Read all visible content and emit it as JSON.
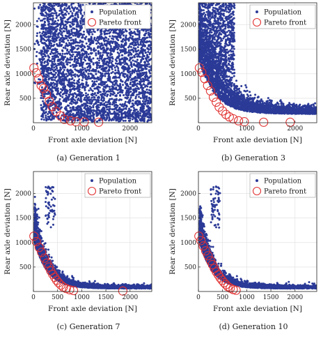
{
  "chart_data": [
    {
      "type": "scatter",
      "caption": "(a) Generation 1",
      "xlabel": "Front axle deviation [N]",
      "ylabel": "Rear axle deviation [N]",
      "xlim": [
        0,
        2450
      ],
      "ylim": [
        0,
        2450
      ],
      "xticks": [
        0,
        1000,
        2000
      ],
      "yticks": [
        500,
        1000,
        1500,
        2000
      ],
      "xtick_labels": [
        "0",
        "1000",
        "2000"
      ],
      "ytick_labels": [
        "500",
        "1000",
        "1500",
        "2000"
      ],
      "legend": {
        "position": "top-right",
        "entries": [
          "Population",
          "Pareto front"
        ]
      },
      "grid": true,
      "population_shape": "uniform",
      "series": [
        {
          "name": "Pareto front",
          "points": [
            [
              10,
              1120
            ],
            [
              60,
              1020
            ],
            [
              110,
              900
            ],
            [
              160,
              760
            ],
            [
              210,
              700
            ],
            [
              270,
              580
            ],
            [
              330,
              440
            ],
            [
              390,
              330
            ],
            [
              470,
              230
            ],
            [
              560,
              140
            ],
            [
              640,
              70
            ],
            [
              770,
              40
            ],
            [
              880,
              20
            ],
            [
              1050,
              15
            ],
            [
              1350,
              10
            ]
          ]
        }
      ]
    },
    {
      "type": "scatter",
      "caption": "(b) Generation 3",
      "xlabel": "Front axle deviation [N]",
      "ylabel": "Rear axle deviation [N]",
      "xlim": [
        0,
        2450
      ],
      "ylim": [
        0,
        2450
      ],
      "xticks": [
        0,
        1000,
        2000
      ],
      "yticks": [
        500,
        1000,
        1500,
        2000
      ],
      "xtick_labels": [
        "0",
        "1000",
        "2000"
      ],
      "ytick_labels": [
        "500",
        "1000",
        "1500",
        "2000"
      ],
      "legend": {
        "position": "top-right",
        "entries": [
          "Population",
          "Pareto front"
        ]
      },
      "grid": true,
      "population_shape": "curve",
      "series": [
        {
          "name": "Pareto front",
          "points": [
            [
              20,
              1120
            ],
            [
              70,
              1030
            ],
            [
              130,
              900
            ],
            [
              190,
              760
            ],
            [
              250,
              650
            ],
            [
              310,
              520
            ],
            [
              370,
              420
            ],
            [
              430,
              320
            ],
            [
              500,
              240
            ],
            [
              570,
              170
            ],
            [
              640,
              120
            ],
            [
              720,
              80
            ],
            [
              830,
              40
            ],
            [
              950,
              20
            ],
            [
              1350,
              10
            ],
            [
              1900,
              10
            ]
          ]
        }
      ]
    },
    {
      "type": "scatter",
      "caption": "(c) Generation 7",
      "xlabel": "Front axle deviation [N]",
      "ylabel": "Rear axle deviation [N]",
      "xlim": [
        0,
        2450
      ],
      "ylim": [
        0,
        2450
      ],
      "xticks": [
        0,
        500,
        1000,
        1500,
        2000
      ],
      "yticks": [
        500,
        1000,
        1500,
        2000
      ],
      "xtick_labels": [
        "0",
        "500",
        "1000",
        "1500",
        "2000"
      ],
      "ytick_labels": [
        "500",
        "1000",
        "1500",
        "2000"
      ],
      "legend": {
        "position": "top-right",
        "entries": [
          "Population",
          "Pareto front"
        ]
      },
      "grid": true,
      "population_shape": "tight",
      "series": [
        {
          "name": "Pareto front",
          "points": [
            [
              10,
              1130
            ],
            [
              60,
              1020
            ],
            [
              120,
              900
            ],
            [
              170,
              800
            ],
            [
              230,
              680
            ],
            [
              280,
              580
            ],
            [
              320,
              500
            ],
            [
              360,
              420
            ],
            [
              400,
              350
            ],
            [
              440,
              290
            ],
            [
              480,
              230
            ],
            [
              520,
              180
            ],
            [
              570,
              130
            ],
            [
              620,
              90
            ],
            [
              680,
              60
            ],
            [
              750,
              35
            ],
            [
              830,
              20
            ],
            [
              1850,
              10
            ]
          ]
        }
      ]
    },
    {
      "type": "scatter",
      "caption": "(d) Generation 10",
      "xlabel": "Front axle deviation [N]",
      "ylabel": "Rear axle deviation [N]",
      "xlim": [
        0,
        2450
      ],
      "ylim": [
        0,
        2450
      ],
      "xticks": [
        0,
        500,
        1000,
        1500,
        2000
      ],
      "yticks": [
        500,
        1000,
        1500,
        2000
      ],
      "xtick_labels": [
        "0",
        "500",
        "1000",
        "1500",
        "2000"
      ],
      "ytick_labels": [
        "500",
        "1000",
        "1500",
        "2000"
      ],
      "legend": {
        "position": "top-right",
        "entries": [
          "Population",
          "Pareto front"
        ]
      },
      "grid": true,
      "population_shape": "tight",
      "series": [
        {
          "name": "Pareto front",
          "points": [
            [
              10,
              1130
            ],
            [
              50,
              1040
            ],
            [
              100,
              930
            ],
            [
              150,
              830
            ],
            [
              200,
              730
            ],
            [
              250,
              630
            ],
            [
              290,
              550
            ],
            [
              330,
              470
            ],
            [
              370,
              400
            ],
            [
              410,
              340
            ],
            [
              450,
              280
            ],
            [
              490,
              230
            ],
            [
              530,
              180
            ],
            [
              570,
              140
            ],
            [
              610,
              100
            ],
            [
              660,
              70
            ],
            [
              720,
              40
            ],
            [
              780,
              25
            ]
          ]
        }
      ]
    }
  ],
  "colors": {
    "population": "#2b3a97",
    "pareto": "#e23232",
    "grid": "#dedede",
    "axis": "#222222"
  }
}
